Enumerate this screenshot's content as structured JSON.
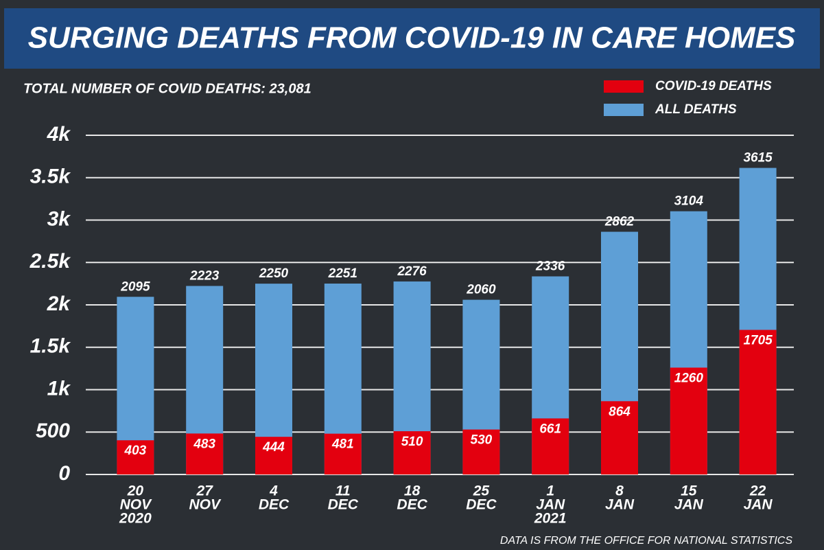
{
  "chart_data": {
    "type": "bar",
    "title": "SURGING DEATHS FROM COVID-19 IN CARE HOMES",
    "subtitle": "TOTAL NUMBER OF COVID DEATHS: 23,081",
    "source": "DATA IS FROM THE OFFICE FOR NATIONAL STATISTICS",
    "categories": [
      [
        "20",
        "NOV",
        "2020"
      ],
      [
        "27",
        "NOV"
      ],
      [
        "4",
        "DEC"
      ],
      [
        "11",
        "DEC"
      ],
      [
        "18",
        "DEC"
      ],
      [
        "25",
        "DEC"
      ],
      [
        "1",
        "JAN",
        "2021"
      ],
      [
        "8",
        "JAN"
      ],
      [
        "15",
        "JAN"
      ],
      [
        "22",
        "JAN"
      ]
    ],
    "series": [
      {
        "name": "COVID-19 DEATHS",
        "color": "#e3000f",
        "values": [
          403,
          483,
          444,
          481,
          510,
          530,
          661,
          864,
          1260,
          1705
        ]
      },
      {
        "name": "ALL DEATHS",
        "color": "#5e9fd6",
        "values": [
          2095,
          2223,
          2250,
          2251,
          2276,
          2060,
          2336,
          2862,
          3104,
          3615
        ]
      }
    ],
    "overlap": true,
    "ylim": [
      0,
      4000
    ],
    "yticks": [
      0,
      500,
      {
        "value": 1000,
        "label": "1k"
      },
      {
        "value": 1500,
        "label": "1.5k"
      },
      {
        "value": 2000,
        "label": "2k"
      },
      {
        "value": 2500,
        "label": "2.5k"
      },
      {
        "value": 3000,
        "label": "3k"
      },
      {
        "value": 3500,
        "label": "3.5k"
      },
      {
        "value": 4000,
        "label": "4k"
      }
    ],
    "grid": true,
    "legend": "top-right"
  }
}
